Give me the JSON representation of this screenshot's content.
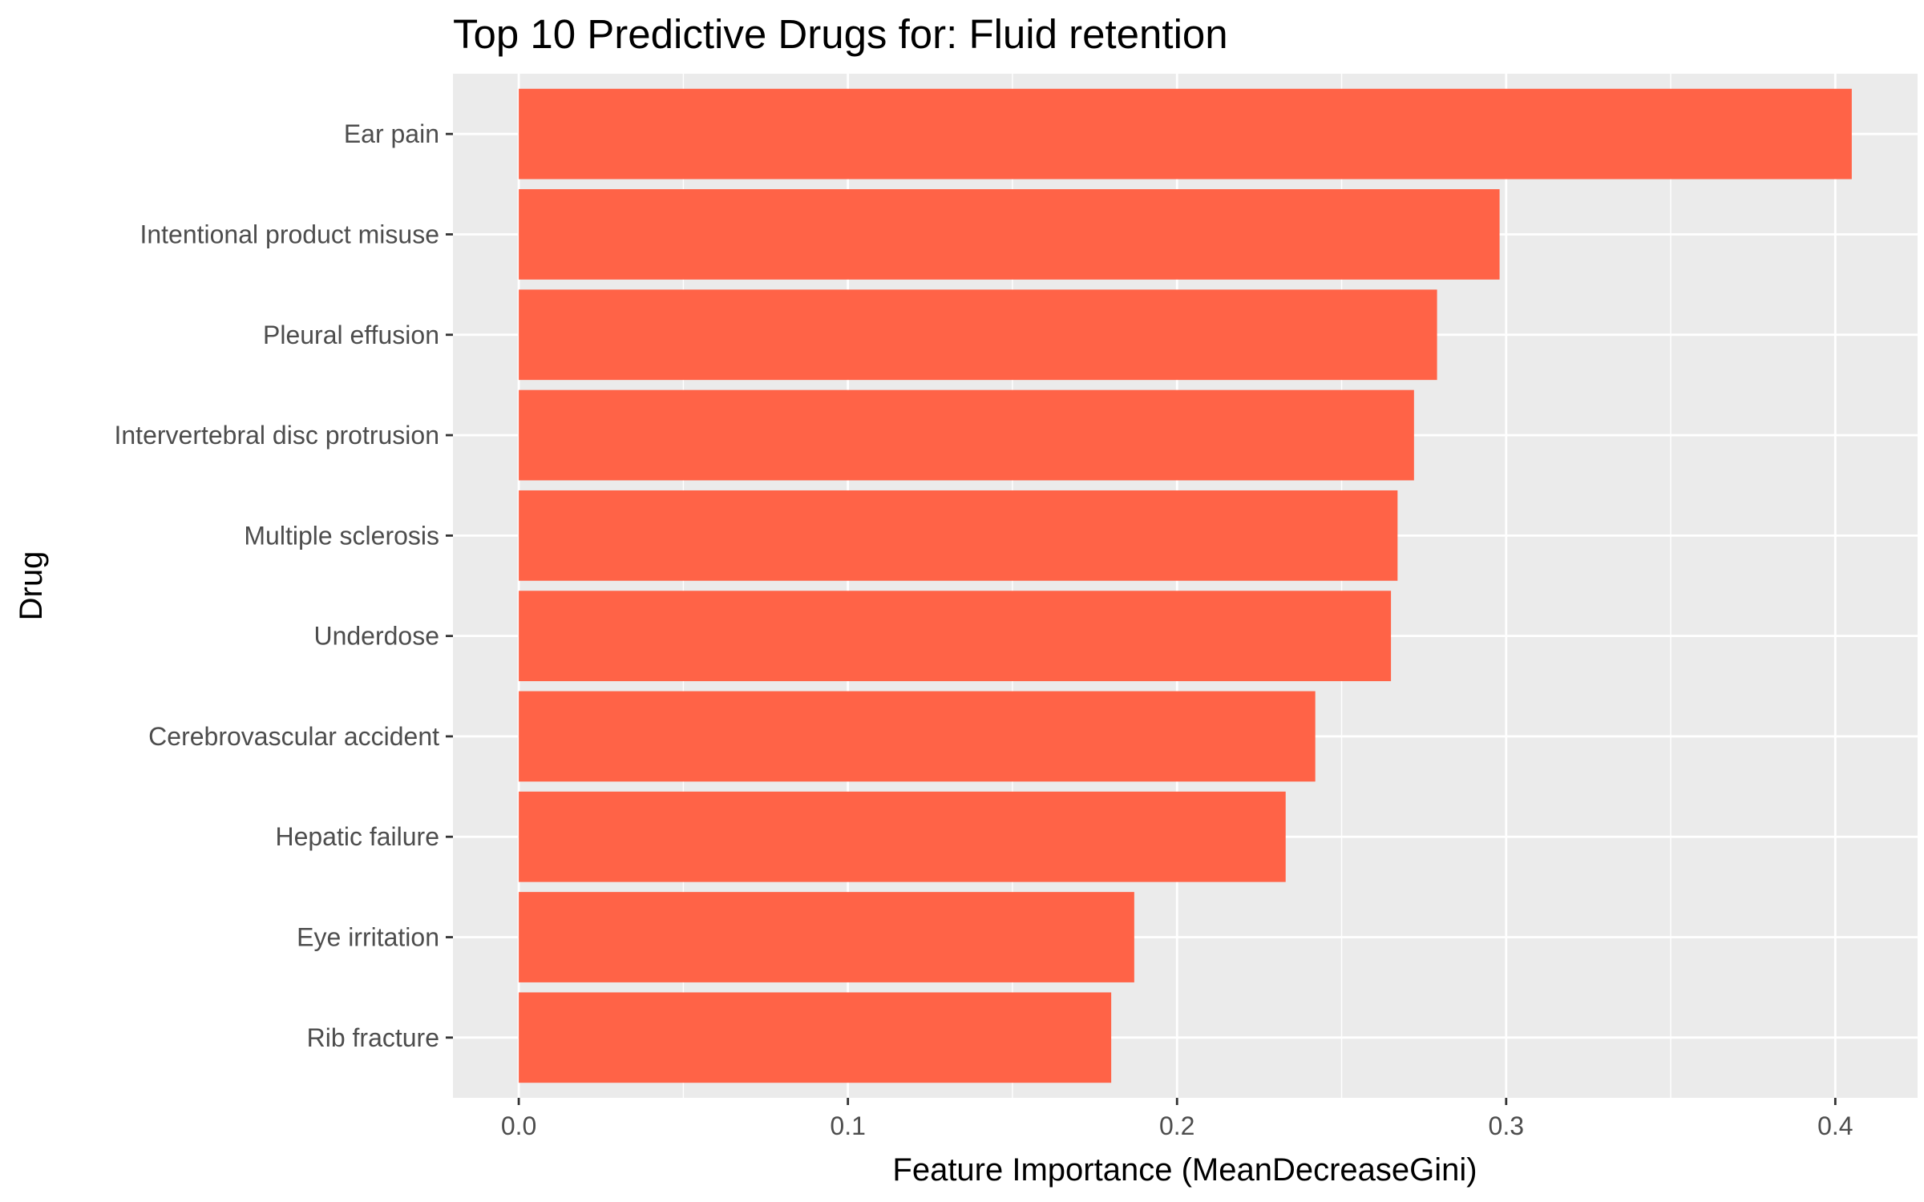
{
  "chart_data": {
    "type": "bar",
    "orientation": "horizontal",
    "title": "Top 10 Predictive Drugs for: Fluid retention",
    "xlabel": "Feature Importance (MeanDecreaseGini)",
    "ylabel": "Drug",
    "categories": [
      "Ear pain",
      "Intentional product misuse",
      "Pleural effusion",
      "Intervertebral disc protrusion",
      "Multiple sclerosis",
      "Underdose",
      "Cerebrovascular accident",
      "Hepatic failure",
      "Eye irritation",
      "Rib fracture"
    ],
    "values": [
      0.405,
      0.298,
      0.279,
      0.272,
      0.267,
      0.265,
      0.242,
      0.233,
      0.187,
      0.18
    ],
    "xlim": [
      -0.02,
      0.425
    ],
    "xticks": [
      0.0,
      0.1,
      0.2,
      0.3,
      0.4
    ],
    "xtick_labels": [
      "0.0",
      "0.1",
      "0.2",
      "0.3",
      "0.4"
    ],
    "grid": true,
    "legend": "none",
    "colors": {
      "bar": "#FF6347",
      "panel_background": "#EBEBEB",
      "grid": "#FFFFFF",
      "tick_label": "#4D4D4D",
      "tick_mark": "#333333"
    }
  }
}
